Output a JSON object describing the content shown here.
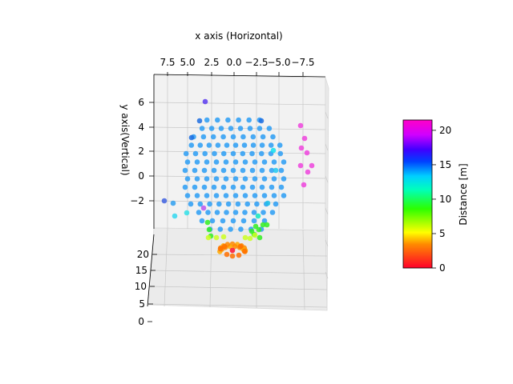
{
  "chart_data": {
    "type": "scatter",
    "projection": "3d",
    "xlabel": "x axis (Horizontal)",
    "ylabel": "y axis(Vertical)",
    "zlabel": "",
    "x_ticks": [
      "7.5",
      "5.0",
      "2.5",
      "0.0",
      "−2.5",
      "−5.0",
      "−7.5"
    ],
    "y_ticks": [
      "6",
      "4",
      "2",
      "0",
      "−2"
    ],
    "z_ticks": [
      "20",
      "15",
      "10",
      "5",
      "0"
    ],
    "xlim": [
      10,
      -10
    ],
    "ylim": [
      -4,
      8
    ],
    "zlim": [
      0,
      22
    ],
    "grid": true,
    "colormap": "gist_rainbow",
    "colorbar": {
      "label": "Distance [m]",
      "range": [
        0,
        21.5
      ],
      "ticks": [
        "0",
        "5",
        "10",
        "15",
        "20"
      ]
    }
  }
}
